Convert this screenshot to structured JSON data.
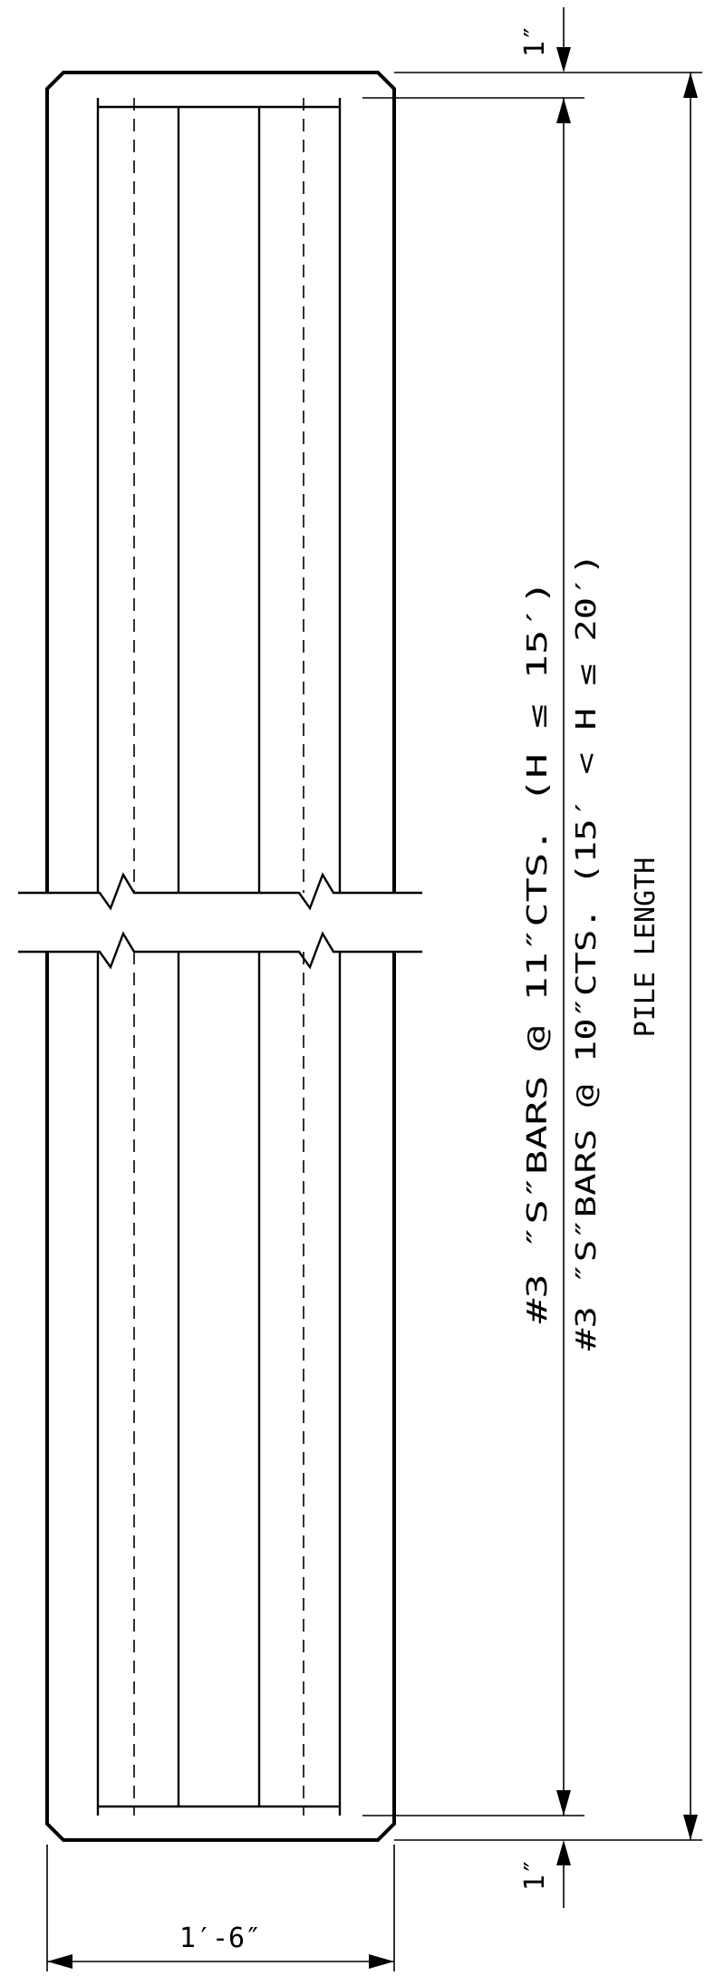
{
  "dimensions": {
    "top_cover": "1″",
    "bottom_cover": "1″",
    "width": "1′-6″",
    "overall": "PILE LENGTH"
  },
  "notes": {
    "bars_line1": "#3 ″S″BARS @ 11″CTS. (H ≤ 15′)",
    "bars_line2": "#3 ″S″BARS @ 10″CTS. (15′ < H ≤ 20′)"
  }
}
